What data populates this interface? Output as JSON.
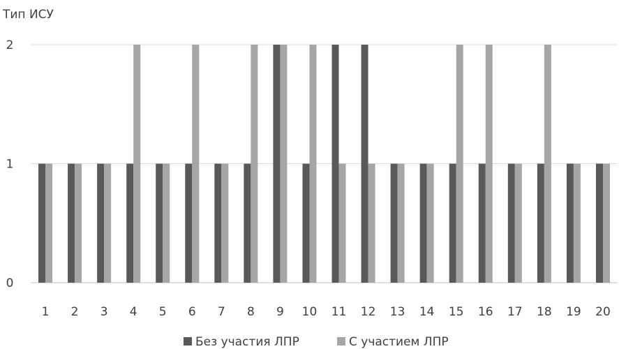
{
  "chart_data": {
    "type": "bar",
    "ylabel": "Тип ИСУ",
    "categories": [
      "1",
      "2",
      "3",
      "4",
      "5",
      "6",
      "7",
      "8",
      "9",
      "10",
      "11",
      "12",
      "13",
      "14",
      "15",
      "16",
      "17",
      "18",
      "19",
      "20"
    ],
    "yticks": [
      "0",
      "1",
      "2"
    ],
    "ylim": [
      0,
      2
    ],
    "grid": true,
    "legend_position": "bottom",
    "series": [
      {
        "name": "Без участия ЛПР",
        "color": "#595959",
        "values": [
          1,
          1,
          1,
          1,
          1,
          1,
          1,
          1,
          2,
          1,
          2,
          2,
          1,
          1,
          1,
          1,
          1,
          1,
          1,
          1
        ]
      },
      {
        "name": "С участием ЛПР",
        "color": "#a6a6a6",
        "values": [
          1,
          1,
          1,
          2,
          1,
          2,
          1,
          2,
          2,
          2,
          1,
          1,
          1,
          1,
          2,
          2,
          1,
          2,
          1,
          1
        ]
      }
    ]
  }
}
